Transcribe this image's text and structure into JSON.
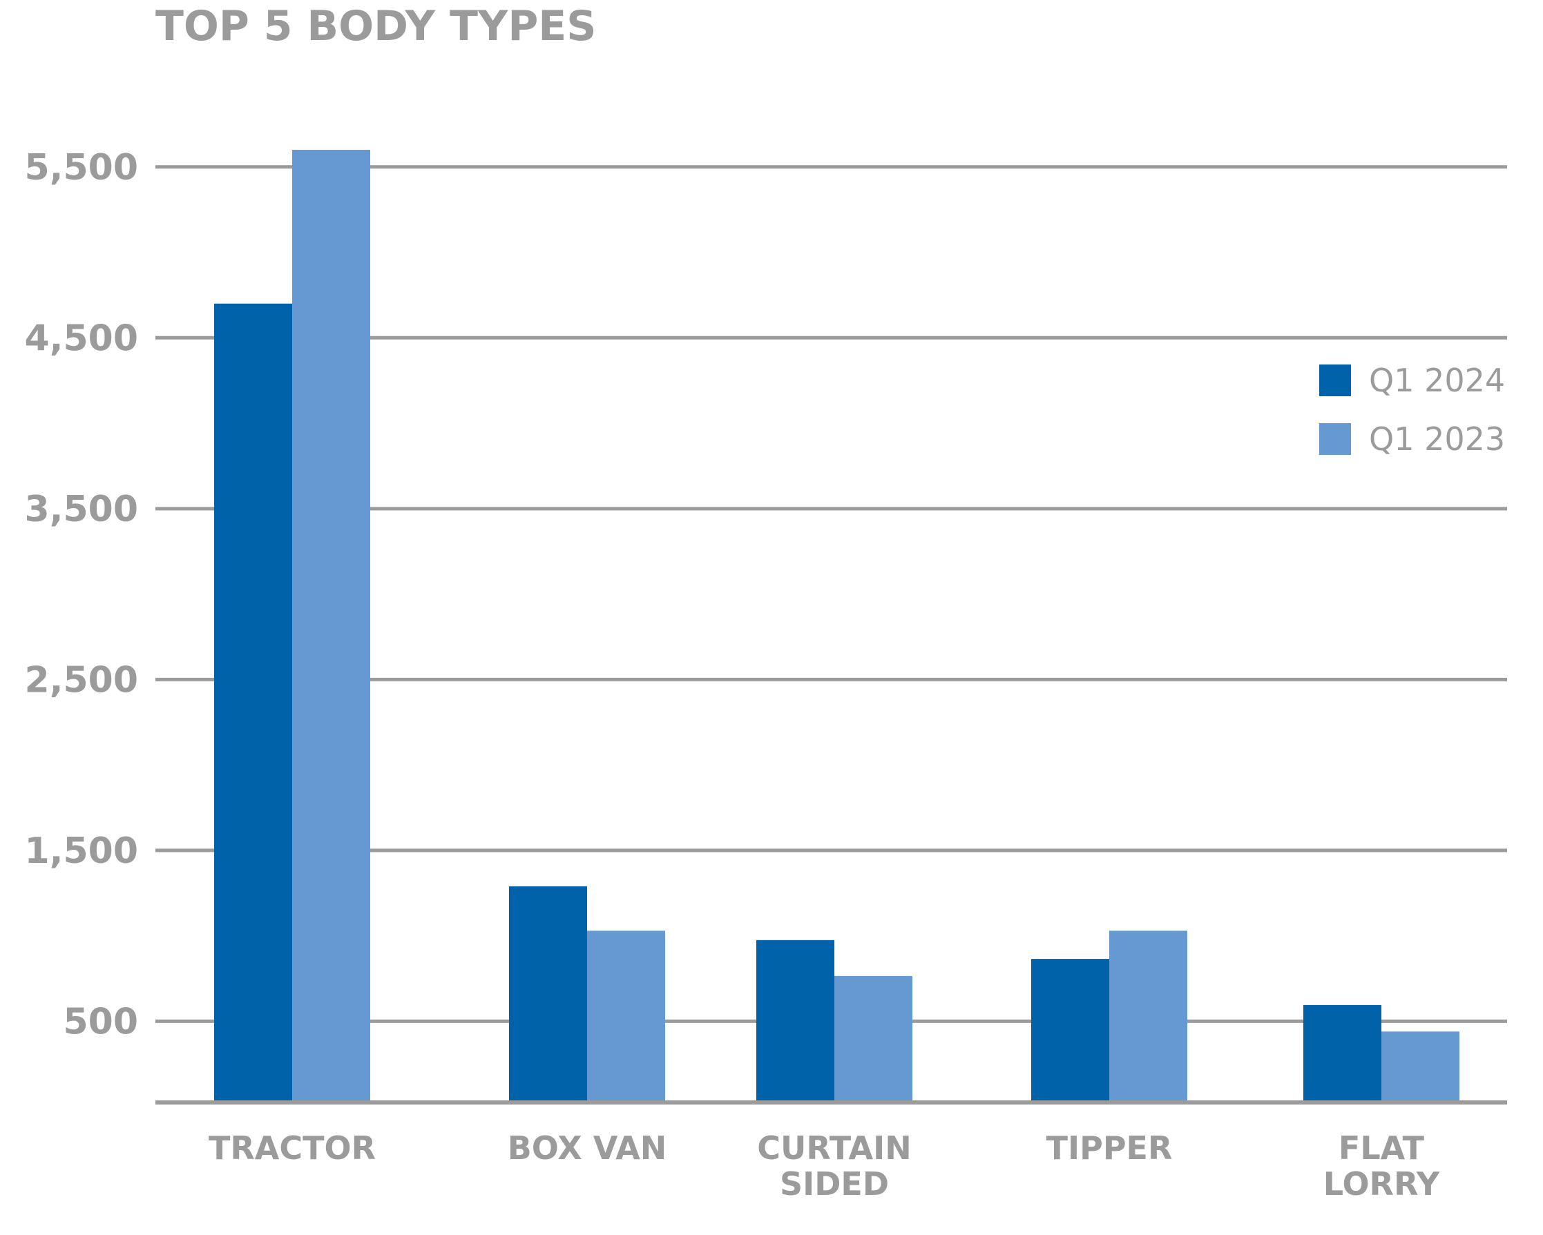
{
  "chart_data": {
    "type": "bar",
    "title": "TOP 5 BODY TYPES",
    "xlabel": "",
    "ylabel": "",
    "categories": [
      "TRACTOR",
      "BOX VAN",
      "CURTAIN SIDED",
      "TIPPER",
      "FLAT LORRY"
    ],
    "category_lines": [
      [
        "TRACTOR"
      ],
      [
        "BOX VAN"
      ],
      [
        "CURTAIN",
        "SIDED"
      ],
      [
        "TIPPER"
      ],
      [
        "FLAT",
        "LORRY"
      ]
    ],
    "series": [
      {
        "name": "Q1 2024",
        "color": "#0062a8",
        "values": [
          4700,
          1290,
          975,
          865,
          595
        ]
      },
      {
        "name": "Q1 2023",
        "color": "#6699d2",
        "values": [
          5600,
          1030,
          765,
          1030,
          440
        ]
      }
    ],
    "yticks": [
      500,
      1500,
      2500,
      3500,
      4500,
      5500
    ],
    "ytick_labels": [
      "500",
      "1,500",
      "2,500",
      "3,500",
      "4,500",
      "5,500"
    ],
    "ylim": [
      25,
      5600
    ],
    "grid": true,
    "legend_position": "right"
  }
}
